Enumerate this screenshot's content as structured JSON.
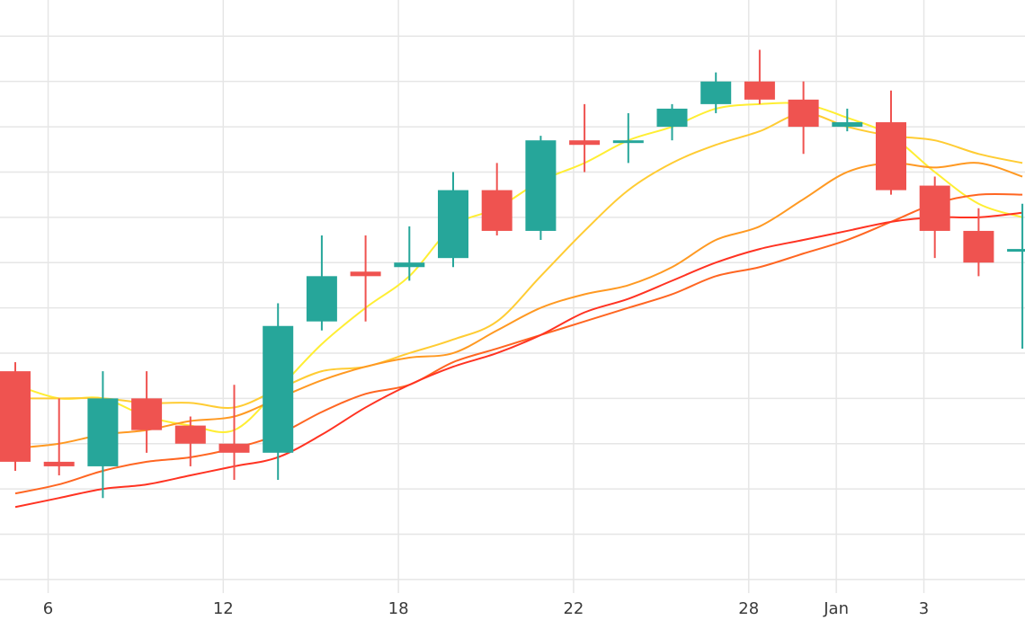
{
  "chart_data": {
    "type": "candlestick",
    "title": "",
    "xlabel": "",
    "ylabel": "",
    "x_tick_labels": [
      "6",
      "12",
      "18",
      "22",
      "28",
      "Jan",
      "3"
    ],
    "ylim": [
      0,
      13.1
    ],
    "grid": true,
    "legend": "none",
    "colors": {
      "up": "#26a69a",
      "down": "#ef5350",
      "grid": "#e6e6e6",
      "background": "#ffffff"
    },
    "candles": [
      {
        "x": 0,
        "open": 4.9,
        "high": 5.1,
        "low": 2.7,
        "close": 2.9
      },
      {
        "x": 1,
        "open": 2.9,
        "high": 4.3,
        "low": 2.6,
        "close": 2.8
      },
      {
        "x": 2,
        "open": 2.8,
        "high": 4.9,
        "low": 2.1,
        "close": 4.3
      },
      {
        "x": 3,
        "open": 4.3,
        "high": 4.9,
        "low": 3.1,
        "close": 3.6
      },
      {
        "x": 4,
        "open": 3.7,
        "high": 3.9,
        "low": 2.8,
        "close": 3.3
      },
      {
        "x": 5,
        "open": 3.3,
        "high": 4.6,
        "low": 2.5,
        "close": 3.1
      },
      {
        "x": 6,
        "open": 3.1,
        "high": 6.4,
        "low": 2.5,
        "close": 5.9
      },
      {
        "x": 7,
        "open": 6.0,
        "high": 7.9,
        "low": 5.8,
        "close": 7.0
      },
      {
        "x": 8,
        "open": 7.1,
        "high": 7.9,
        "low": 6.0,
        "close": 7.0
      },
      {
        "x": 9,
        "open": 7.2,
        "high": 8.1,
        "low": 6.9,
        "close": 7.3
      },
      {
        "x": 10,
        "open": 7.4,
        "high": 9.3,
        "low": 7.2,
        "close": 8.9
      },
      {
        "x": 11,
        "open": 8.9,
        "high": 9.5,
        "low": 7.9,
        "close": 8.0
      },
      {
        "x": 12,
        "open": 8.0,
        "high": 10.1,
        "low": 7.8,
        "close": 10.0
      },
      {
        "x": 13,
        "open": 10.0,
        "high": 10.8,
        "low": 9.3,
        "close": 9.9
      },
      {
        "x": 14,
        "open": 10.0,
        "high": 10.6,
        "low": 9.5,
        "close": 10.0
      },
      {
        "x": 15,
        "open": 10.3,
        "high": 10.8,
        "low": 10.0,
        "close": 10.7
      },
      {
        "x": 16,
        "open": 10.8,
        "high": 11.5,
        "low": 10.6,
        "close": 11.3
      },
      {
        "x": 17,
        "open": 11.3,
        "high": 12.0,
        "low": 10.8,
        "close": 10.9
      },
      {
        "x": 18,
        "open": 10.9,
        "high": 11.3,
        "low": 9.7,
        "close": 10.3
      },
      {
        "x": 19,
        "open": 10.3,
        "high": 10.7,
        "low": 10.2,
        "close": 10.4
      },
      {
        "x": 20,
        "open": 10.4,
        "high": 11.1,
        "low": 8.8,
        "close": 8.9
      },
      {
        "x": 21,
        "open": 9.0,
        "high": 9.2,
        "low": 7.4,
        "close": 8.0
      },
      {
        "x": 22,
        "open": 8.0,
        "high": 8.5,
        "low": 7.0,
        "close": 7.3
      },
      {
        "x": 23,
        "open": 7.6,
        "high": 8.6,
        "low": 5.4,
        "close": 7.6
      }
    ],
    "moving_averages": [
      {
        "color": "#ffee33",
        "values": [
          4.6,
          4.3,
          4.3,
          3.9,
          3.7,
          3.6,
          4.5,
          5.5,
          6.3,
          7.0,
          8.1,
          8.5,
          9.1,
          9.5,
          10.0,
          10.3,
          10.7,
          10.8,
          10.8,
          10.5,
          10.1,
          9.3,
          8.6,
          8.3
        ]
      },
      {
        "color": "#ffcc33",
        "values": [
          4.3,
          4.3,
          4.3,
          4.2,
          4.2,
          4.1,
          4.5,
          4.9,
          5.0,
          5.3,
          5.6,
          6.0,
          7.0,
          8.0,
          8.9,
          9.5,
          9.9,
          10.2,
          10.6,
          10.3,
          10.1,
          10.0,
          9.7,
          9.5
        ]
      },
      {
        "color": "#ff9922",
        "values": [
          3.2,
          3.3,
          3.5,
          3.6,
          3.8,
          3.9,
          4.3,
          4.7,
          5.0,
          5.2,
          5.3,
          5.8,
          6.3,
          6.6,
          6.8,
          7.2,
          7.8,
          8.1,
          8.7,
          9.3,
          9.5,
          9.4,
          9.5,
          9.2
        ]
      },
      {
        "color": "#ff6622",
        "values": [
          2.2,
          2.4,
          2.7,
          2.9,
          3.0,
          3.2,
          3.5,
          4.0,
          4.4,
          4.6,
          5.1,
          5.4,
          5.7,
          6.0,
          6.3,
          6.6,
          7.0,
          7.2,
          7.5,
          7.8,
          8.2,
          8.6,
          8.8,
          8.8
        ]
      },
      {
        "color": "#ff3322",
        "values": [
          1.9,
          2.1,
          2.3,
          2.4,
          2.6,
          2.8,
          3.0,
          3.5,
          4.1,
          4.6,
          5.0,
          5.3,
          5.7,
          6.2,
          6.5,
          6.9,
          7.3,
          7.6,
          7.8,
          8.0,
          8.2,
          8.3,
          8.3,
          8.4
        ]
      }
    ],
    "x_ticks": [
      {
        "x": 0.75,
        "label": "6"
      },
      {
        "x": 4.75,
        "label": "12"
      },
      {
        "x": 8.75,
        "label": "18"
      },
      {
        "x": 12.75,
        "label": "22"
      },
      {
        "x": 16.75,
        "label": "28"
      },
      {
        "x": 18.75,
        "label": "Jan"
      },
      {
        "x": 20.75,
        "label": "3"
      }
    ],
    "y_gridlines": [
      0.3,
      1.3,
      2.3,
      3.3,
      4.3,
      5.3,
      6.3,
      7.3,
      8.3,
      9.3,
      10.3,
      11.3,
      12.3,
      13.3
    ]
  }
}
